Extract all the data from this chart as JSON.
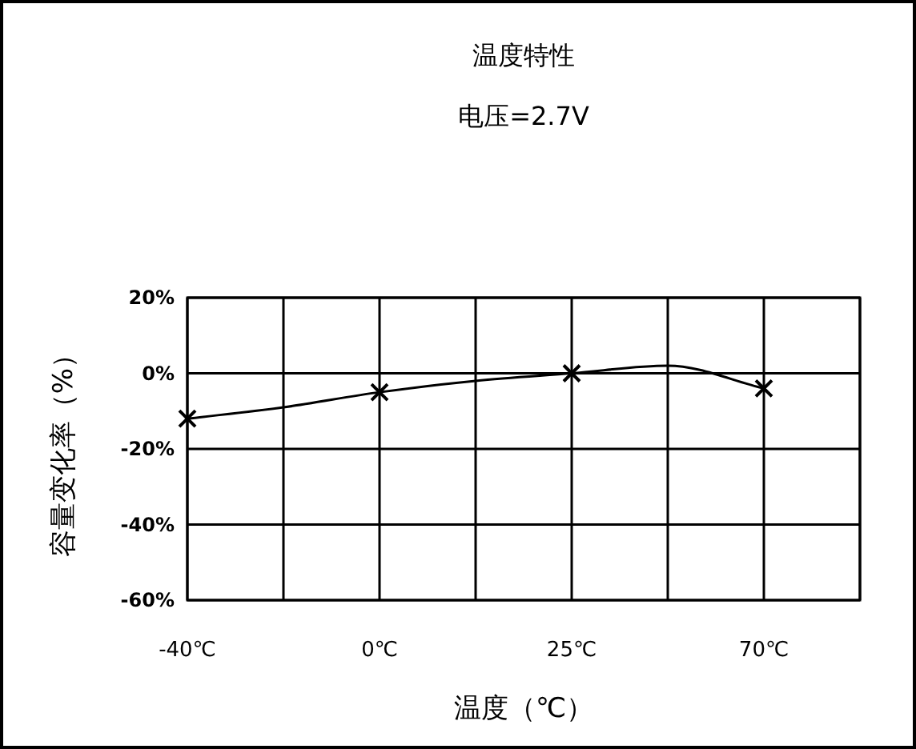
{
  "chart_data": {
    "type": "line",
    "title": "温度特性",
    "subtitle": "电压=2.7V",
    "xlabel": "温度（℃）",
    "ylabel": "容量变化率（%）",
    "categories": [
      "-40℃",
      null,
      "0℃",
      null,
      "25℃",
      null,
      "70℃",
      null
    ],
    "series": [
      {
        "color": "#000000",
        "values": [
          -12,
          -9,
          -5,
          -2,
          0,
          2,
          -4,
          null
        ]
      },
      {
        "type": "scatter",
        "marker": "cross",
        "color": "#000000",
        "x": [
          "-40℃",
          "0℃",
          "25℃",
          "70℃"
        ],
        "values": [
          -12,
          -5,
          0,
          -4
        ]
      }
    ],
    "ylim": [
      -60,
      20
    ],
    "yticks": [
      {
        "value": 20,
        "label": "20%"
      },
      {
        "value": 0,
        "label": "0%"
      },
      {
        "value": -20,
        "label": "-20%"
      },
      {
        "value": -40,
        "label": "-40%"
      },
      {
        "value": -60,
        "label": "-60%"
      }
    ],
    "grid": true
  }
}
